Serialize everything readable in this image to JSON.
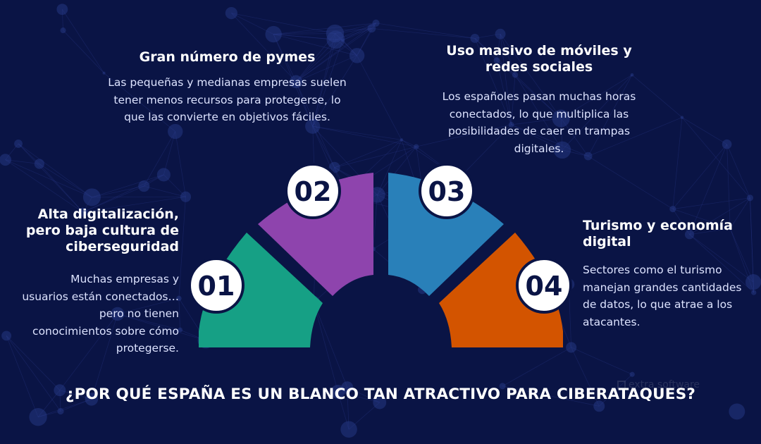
{
  "title": "¿POR QUÉ ESPAÑA ES UN BLANCO TAN ATRACTIVO PARA CIBERATAQUES?",
  "watermark": "extra software",
  "colors": {
    "background": "#0a1445",
    "segment_01": "#16a085",
    "segment_02": "#8e44ad",
    "segment_03": "#2980b9",
    "segment_04": "#d35400",
    "badge": "#ffffff",
    "badge_text": "#0a1445"
  },
  "items": [
    {
      "number": "01",
      "title": "Alta digitalización, pero baja cultura de ciberseguridad",
      "description": "Muchas empresas y usuarios están conectados… pero no tienen conocimientos sobre cómo protegerse."
    },
    {
      "number": "02",
      "title": "Gran número de pymes",
      "description": "Las pequeñas y medianas empresas suelen tener menos recursos para protegerse, lo que las convierte en objetivos fáciles."
    },
    {
      "number": "03",
      "title": "Uso masivo de móviles y redes sociales",
      "description": "Los españoles pasan muchas horas conectados, lo que multiplica las posibilidades de caer en trampas digitales."
    },
    {
      "number": "04",
      "title": "Turismo y economía digital",
      "description": "Sectores como el turismo manejan grandes cantidades de datos, lo que atrae a los atacantes."
    }
  ]
}
